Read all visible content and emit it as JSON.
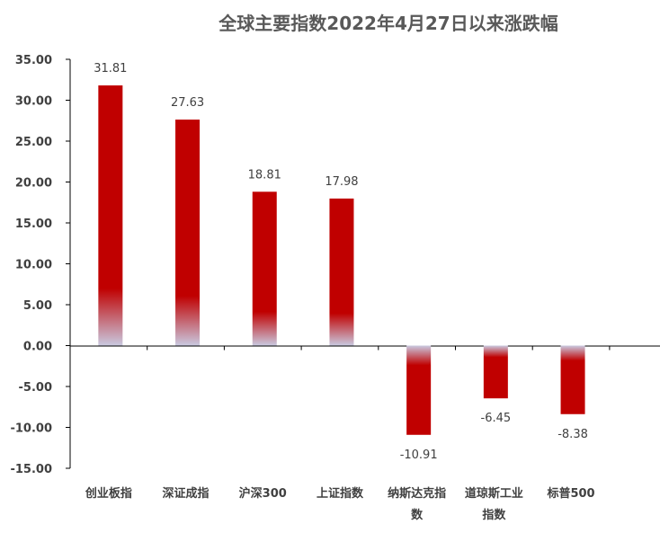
{
  "chart_data": {
    "type": "bar",
    "title": "全球主要指数2022年4月27日以来涨跌幅",
    "categories": [
      "创业板指",
      "深证成指",
      "沪深300",
      "上证指数",
      "纳斯达克指数",
      "道琼斯工业指数",
      "标普500"
    ],
    "category_lines": [
      [
        "创业板指"
      ],
      [
        "深证成指"
      ],
      [
        "沪深300"
      ],
      [
        "上证指数"
      ],
      [
        "纳斯达克指",
        "数"
      ],
      [
        "道琼斯工业",
        "指数"
      ],
      [
        "标普500"
      ]
    ],
    "values": [
      31.81,
      27.63,
      18.81,
      17.98,
      -10.91,
      -6.45,
      -8.38
    ],
    "data_labels": [
      "31.81",
      "27.63",
      "18.81",
      "17.98",
      "-10.91",
      "-6.45",
      "-8.38"
    ],
    "ylim": [
      -15,
      35
    ],
    "yticks": [
      35,
      30,
      25,
      20,
      15,
      10,
      5,
      0,
      -5,
      -10,
      -15
    ],
    "ytick_labels": [
      "35.00",
      "30.00",
      "25.00",
      "20.00",
      "15.00",
      "10.00",
      "5.00",
      "0.00",
      "-5.00",
      "-10.00",
      "-15.00"
    ],
    "xlabel": "",
    "ylabel": "",
    "grid": false,
    "legend": "none",
    "bar_color": "#c00000",
    "bar_fade_color": "#c9c9e0"
  }
}
